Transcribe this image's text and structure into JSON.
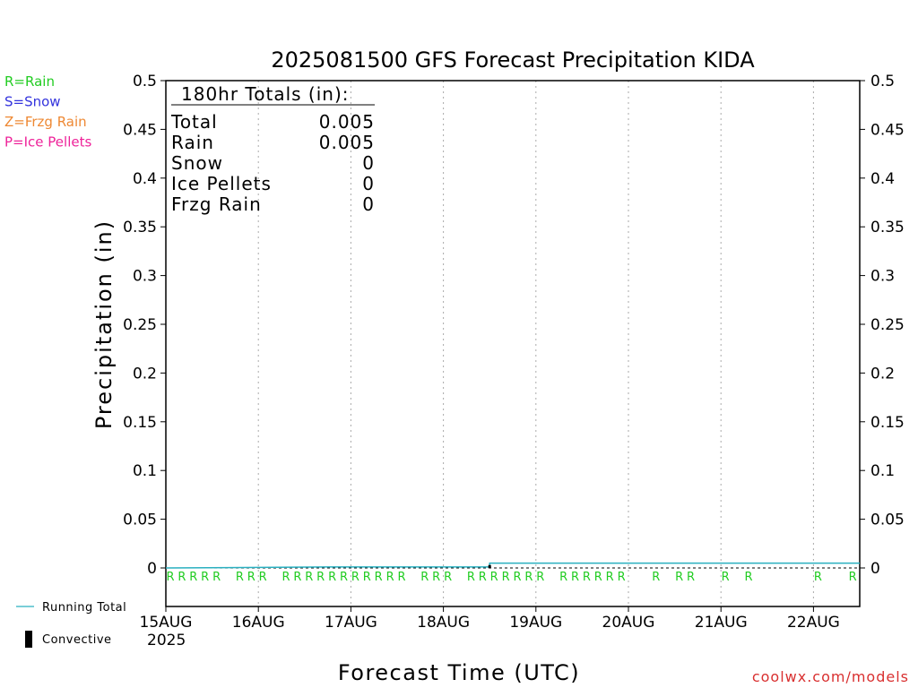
{
  "chart_data": {
    "type": "line",
    "title": "2025081500 GFS Forecast Precipitation KIDA",
    "xlabel": "Forecast Time (UTC)",
    "ylabel": "Precipitation (in)",
    "ylim": [
      0,
      0.5
    ],
    "yticks": [
      "0",
      "0.05",
      "0.1",
      "0.15",
      "0.2",
      "0.25",
      "0.3",
      "0.35",
      "0.4",
      "0.45",
      "0.5"
    ],
    "x_start": "2025-08-15T00Z",
    "x_end": "2025-08-22T12Z",
    "x_ticks": [
      {
        "x": "2025-08-15T00Z",
        "label": "15AUG"
      },
      {
        "x": "2025-08-16T00Z",
        "label": "16AUG"
      },
      {
        "x": "2025-08-17T00Z",
        "label": "17AUG"
      },
      {
        "x": "2025-08-18T00Z",
        "label": "18AUG"
      },
      {
        "x": "2025-08-19T00Z",
        "label": "19AUG"
      },
      {
        "x": "2025-08-20T00Z",
        "label": "20AUG"
      },
      {
        "x": "2025-08-21T00Z",
        "label": "21AUG"
      },
      {
        "x": "2025-08-22T00Z",
        "label": "22AUG"
      }
    ],
    "year_label": "2025",
    "grid": "dotted vertical",
    "series": [
      {
        "name": "Running Total",
        "color": "#2ab0c0",
        "points": [
          {
            "x": "2025-08-15T00Z",
            "y": 0
          },
          {
            "x": "2025-08-16T18Z",
            "y": 0.001
          },
          {
            "x": "2025-08-18T12Z",
            "y": 0.001
          },
          {
            "x": "2025-08-18T12Z",
            "y": 0.005
          },
          {
            "x": "2025-08-22T12Z",
            "y": 0.005
          }
        ]
      },
      {
        "name": "Convective",
        "color": "#000000",
        "bars": [
          {
            "x": "2025-08-18T12Z",
            "y": 0.003
          }
        ]
      }
    ],
    "precip_type_marks": {
      "symbol": "R",
      "color": "#22cc22",
      "times": [
        "2025-08-15T00Z",
        "2025-08-15T03Z",
        "2025-08-15T06Z",
        "2025-08-15T09Z",
        "2025-08-15T12Z",
        "2025-08-15T18Z",
        "2025-08-15T21Z",
        "2025-08-16T00Z",
        "2025-08-16T06Z",
        "2025-08-16T09Z",
        "2025-08-16T12Z",
        "2025-08-16T15Z",
        "2025-08-16T18Z",
        "2025-08-16T21Z",
        "2025-08-17T00Z",
        "2025-08-17T03Z",
        "2025-08-17T06Z",
        "2025-08-17T09Z",
        "2025-08-17T12Z",
        "2025-08-17T18Z",
        "2025-08-17T21Z",
        "2025-08-18T00Z",
        "2025-08-18T06Z",
        "2025-08-18T09Z",
        "2025-08-18T12Z",
        "2025-08-18T15Z",
        "2025-08-18T18Z",
        "2025-08-18T21Z",
        "2025-08-19T00Z",
        "2025-08-19T06Z",
        "2025-08-19T09Z",
        "2025-08-19T12Z",
        "2025-08-19T15Z",
        "2025-08-19T18Z",
        "2025-08-19T21Z",
        "2025-08-20T06Z",
        "2025-08-20T12Z",
        "2025-08-20T15Z",
        "2025-08-21T00Z",
        "2025-08-21T06Z",
        "2025-08-22T00Z",
        "2025-08-22T09Z"
      ]
    },
    "legend_precip_types": [
      {
        "label": "R=Rain",
        "color": "#22cc22"
      },
      {
        "label": "S=Snow",
        "color": "#3333dd"
      },
      {
        "label": "Z=Frzg Rain",
        "color": "#ee8833"
      },
      {
        "label": "P=Ice Pellets",
        "color": "#ee2299"
      }
    ],
    "legend_lines": [
      {
        "label": "Running Total",
        "color": "#2ab0c0",
        "shape": "line"
      },
      {
        "label": "Convective",
        "color": "#000000",
        "shape": "bar"
      }
    ],
    "totals_box": {
      "heading": "180hr Totals (in):",
      "rows": [
        {
          "label": "Total",
          "value": "0.005"
        },
        {
          "label": "Rain",
          "value": "0.005"
        },
        {
          "label": "Snow",
          "value": "0"
        },
        {
          "label": "Ice Pellets",
          "value": "0"
        },
        {
          "label": "Frzg Rain",
          "value": "0"
        }
      ]
    },
    "credit": "coolwx.com/models"
  }
}
